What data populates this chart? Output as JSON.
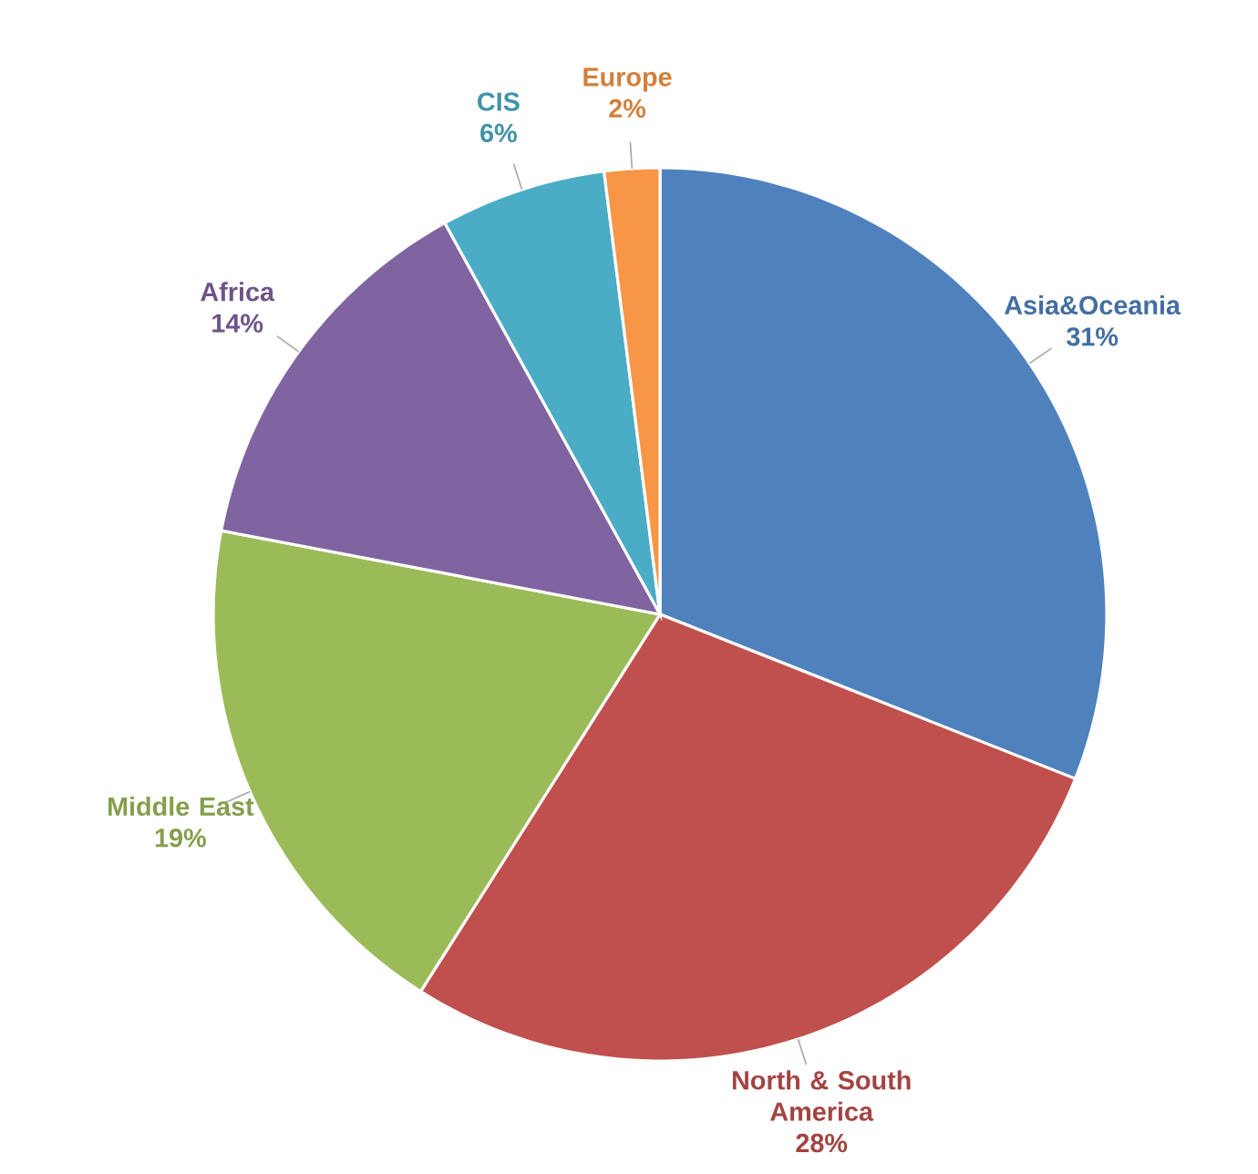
{
  "chart_data": {
    "type": "pie",
    "categories": [
      "Asia&Oceania",
      "North & South America",
      "Middle East",
      "Africa",
      "CIS",
      "Europe"
    ],
    "values": [
      31,
      28,
      19,
      14,
      6,
      2
    ],
    "colors": [
      "#4f81bd",
      "#c0504d",
      "#9bbb59",
      "#8064a2",
      "#4bacc6",
      "#f79646"
    ],
    "value_labels": [
      "31%",
      "28%",
      "19%",
      "14%",
      "6%",
      "2%"
    ]
  }
}
